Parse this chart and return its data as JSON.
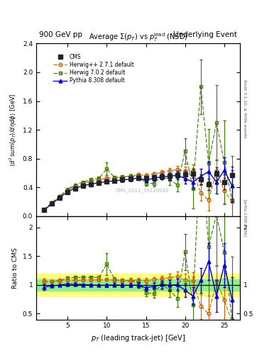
{
  "title_left": "900 GeV pp",
  "title_right": "Underlying Event",
  "plot_title": "Average $\\Sigma(p_T)$ vs $p_T^{\\rm lead}$ (NSD)",
  "xlabel": "$p_T$ (leading track-jet) [GeV]",
  "ylabel_main": "$\\langle d^2\\,\\mathrm{sum}(p_T)/d\\eta d\\phi\\rangle$ [GeV]",
  "ylabel_ratio": "Ratio to CMS",
  "watermark": "CMS_2011_S9120041",
  "right_label_top": "Rivet 3.1.10, $\\geq$ 400k events",
  "right_label_bot": "[arXiv:1306.3436]",
  "xlim": [
    1,
    27
  ],
  "ylim_main": [
    0,
    2.4
  ],
  "ylim_ratio": [
    0.4,
    2.2
  ],
  "cms_x": [
    2.0,
    3.0,
    4.0,
    5.0,
    6.0,
    7.0,
    8.0,
    9.0,
    10.0,
    11.0,
    12.0,
    13.0,
    14.0,
    15.0,
    16.0,
    17.0,
    18.0,
    19.0,
    20.0,
    21.0,
    22.0,
    23.0,
    24.0,
    25.0,
    26.0
  ],
  "cms_y": [
    0.085,
    0.175,
    0.255,
    0.335,
    0.385,
    0.42,
    0.445,
    0.465,
    0.48,
    0.49,
    0.505,
    0.515,
    0.53,
    0.525,
    0.535,
    0.545,
    0.555,
    0.565,
    0.575,
    0.585,
    0.51,
    0.44,
    0.585,
    0.475,
    0.565
  ],
  "cms_yerr": [
    0.008,
    0.008,
    0.008,
    0.01,
    0.01,
    0.015,
    0.015,
    0.015,
    0.018,
    0.02,
    0.022,
    0.025,
    0.025,
    0.03,
    0.03,
    0.035,
    0.038,
    0.04,
    0.05,
    0.06,
    0.07,
    0.08,
    0.09,
    0.1,
    0.12
  ],
  "hpp_x": [
    2.0,
    3.0,
    4.0,
    5.0,
    6.0,
    7.0,
    8.0,
    9.0,
    10.0,
    11.0,
    12.0,
    13.0,
    14.0,
    15.0,
    16.0,
    17.0,
    18.0,
    19.0,
    20.0,
    21.0,
    22.0,
    23.0,
    24.0,
    25.0,
    26.0
  ],
  "hpp_y": [
    0.09,
    0.185,
    0.275,
    0.365,
    0.415,
    0.455,
    0.485,
    0.505,
    0.525,
    0.53,
    0.54,
    0.555,
    0.575,
    0.565,
    0.585,
    0.605,
    0.625,
    0.645,
    0.625,
    0.625,
    0.32,
    0.22,
    0.625,
    0.35,
    0.2
  ],
  "hpp_yerr": [
    0.004,
    0.004,
    0.004,
    0.008,
    0.008,
    0.008,
    0.008,
    0.008,
    0.01,
    0.015,
    0.015,
    0.018,
    0.018,
    0.025,
    0.025,
    0.03,
    0.04,
    0.05,
    0.06,
    0.09,
    0.11,
    0.14,
    0.16,
    0.18,
    0.22
  ],
  "h702_x": [
    2.0,
    3.0,
    4.0,
    5.0,
    6.0,
    7.0,
    8.0,
    9.0,
    10.0,
    11.0,
    12.0,
    13.0,
    14.0,
    15.0,
    16.0,
    17.0,
    18.0,
    19.0,
    20.0,
    21.0,
    22.0,
    23.0,
    24.0,
    25.0,
    26.0
  ],
  "h702_y": [
    0.09,
    0.185,
    0.275,
    0.375,
    0.435,
    0.475,
    0.505,
    0.525,
    0.655,
    0.535,
    0.545,
    0.555,
    0.555,
    0.455,
    0.455,
    0.555,
    0.505,
    0.435,
    0.905,
    0.385,
    1.8,
    0.735,
    1.3,
    0.745,
    0.22
  ],
  "h702_yerr": [
    0.004,
    0.004,
    0.008,
    0.008,
    0.008,
    0.008,
    0.008,
    0.015,
    0.09,
    0.018,
    0.018,
    0.025,
    0.025,
    0.035,
    0.04,
    0.05,
    0.07,
    0.09,
    0.18,
    0.28,
    0.38,
    0.48,
    0.52,
    0.58,
    0.62
  ],
  "py8_x": [
    2.0,
    3.0,
    4.0,
    5.0,
    6.0,
    7.0,
    8.0,
    9.0,
    10.0,
    11.0,
    12.0,
    13.0,
    14.0,
    15.0,
    16.0,
    17.0,
    18.0,
    19.0,
    20.0,
    21.0,
    22.0,
    23.0,
    24.0,
    25.0,
    26.0
  ],
  "py8_y": [
    0.082,
    0.172,
    0.255,
    0.34,
    0.39,
    0.422,
    0.445,
    0.462,
    0.478,
    0.49,
    0.502,
    0.512,
    0.528,
    0.5,
    0.522,
    0.548,
    0.552,
    0.568,
    0.522,
    0.472,
    0.552,
    0.618,
    0.472,
    0.638,
    0.418
  ],
  "py8_yerr": [
    0.004,
    0.004,
    0.004,
    0.008,
    0.008,
    0.008,
    0.008,
    0.008,
    0.015,
    0.015,
    0.018,
    0.018,
    0.025,
    0.025,
    0.03,
    0.04,
    0.05,
    0.06,
    0.07,
    0.09,
    0.11,
    0.14,
    0.16,
    0.18,
    0.22
  ],
  "cms_color": "#222222",
  "hpp_color": "#cc6600",
  "h702_color": "#3a7a00",
  "py8_color": "#0000cc",
  "band_green": "#90ee90",
  "band_yellow": "#ffff80"
}
